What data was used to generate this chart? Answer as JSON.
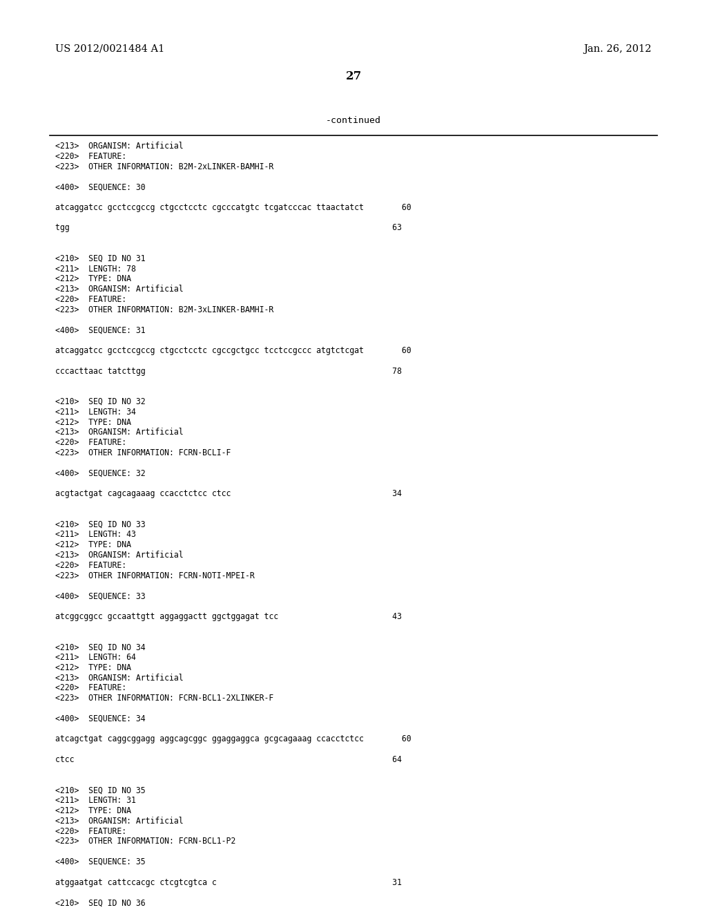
{
  "header_left": "US 2012/0021484 A1",
  "header_right": "Jan. 26, 2012",
  "page_number": "27",
  "continued_label": "-continued",
  "background_color": "#ffffff",
  "text_color": "#000000",
  "content_lines": [
    "<213>  ORGANISM: Artificial",
    "<220>  FEATURE:",
    "<223>  OTHER INFORMATION: B2M-2xLINKER-BAMHI-R",
    "",
    "<400>  SEQUENCE: 30",
    "",
    "atcaggatcc gcctccgccg ctgcctcctc cgcccatgtc tcgatcccac ttaactatct        60",
    "",
    "tgg                                                                    63",
    "",
    "",
    "<210>  SEQ ID NO 31",
    "<211>  LENGTH: 78",
    "<212>  TYPE: DNA",
    "<213>  ORGANISM: Artificial",
    "<220>  FEATURE:",
    "<223>  OTHER INFORMATION: B2M-3xLINKER-BAMHI-R",
    "",
    "<400>  SEQUENCE: 31",
    "",
    "atcaggatcc gcctccgccg ctgcctcctc cgccgctgcc tcctccgccc atgtctcgat        60",
    "",
    "cccacttaac tatcttgg                                                    78",
    "",
    "",
    "<210>  SEQ ID NO 32",
    "<211>  LENGTH: 34",
    "<212>  TYPE: DNA",
    "<213>  ORGANISM: Artificial",
    "<220>  FEATURE:",
    "<223>  OTHER INFORMATION: FCRN-BCLI-F",
    "",
    "<400>  SEQUENCE: 32",
    "",
    "acgtactgat cagcagaaag ccacctctcc ctcc                                  34",
    "",
    "",
    "<210>  SEQ ID NO 33",
    "<211>  LENGTH: 43",
    "<212>  TYPE: DNA",
    "<213>  ORGANISM: Artificial",
    "<220>  FEATURE:",
    "<223>  OTHER INFORMATION: FCRN-NOTI-MPEI-R",
    "",
    "<400>  SEQUENCE: 33",
    "",
    "atcggcggcc gccaattgtt aggaggactt ggctggagat tcc                        43",
    "",
    "",
    "<210>  SEQ ID NO 34",
    "<211>  LENGTH: 64",
    "<212>  TYPE: DNA",
    "<213>  ORGANISM: Artificial",
    "<220>  FEATURE:",
    "<223>  OTHER INFORMATION: FCRN-BCL1-2XLINKER-F",
    "",
    "<400>  SEQUENCE: 34",
    "",
    "atcagctgat caggcggagg aggcagcggc ggaggaggca gcgcagaaag ccacctctcc        60",
    "",
    "ctcc                                                                   64",
    "",
    "",
    "<210>  SEQ ID NO 35",
    "<211>  LENGTH: 31",
    "<212>  TYPE: DNA",
    "<213>  ORGANISM: Artificial",
    "<220>  FEATURE:",
    "<223>  OTHER INFORMATION: FCRN-BCL1-P2",
    "",
    "<400>  SEQUENCE: 35",
    "",
    "atggaatgat cattccacgc ctcgtcgtca c                                     31",
    "",
    "<210>  SEQ ID NO 36"
  ]
}
